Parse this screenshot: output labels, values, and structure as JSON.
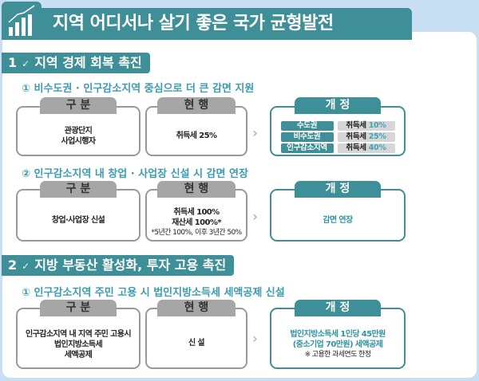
{
  "title": "지역 어디서나 살기 좋은 국가 균형발전",
  "icon": "bar-chart-growth-icon",
  "colors": {
    "teal": "#3e8f97",
    "background": "#c8def3",
    "subtitle": "#3b9bb0"
  },
  "headers": {
    "category": "구 분",
    "current": "현 행",
    "revised": "개 정"
  },
  "sections": [
    {
      "num": "1",
      "label": "지역 경제 회복 촉진",
      "items": [
        {
          "subtitle": "① 비수도권 · 인구감소지역 중심으로 더 큰 감면 지원",
          "category": [
            "관광단지",
            "사업시행자"
          ],
          "current": [
            "취득세 25%"
          ],
          "revised_rows": [
            {
              "region": "수도권",
              "tax": "취득세",
              "rate": "10%"
            },
            {
              "region": "비수도권",
              "tax": "취득세",
              "rate": "25%"
            },
            {
              "region": "인구감소지역",
              "tax": "취득세",
              "rate": "40%"
            }
          ]
        },
        {
          "subtitle": "② 인구감소지역 내 창업 · 사업장 신설 시 감면 연장",
          "category": [
            "창업·사업장 신설"
          ],
          "current": [
            "취득세 100%",
            "재산세 100%*"
          ],
          "current_note": "*5년간 100%, 이후 3년간 50%",
          "revised": [
            "감면 연장"
          ]
        }
      ]
    },
    {
      "num": "2",
      "label": "지방 부동산 활성화, 투자 고용 촉진",
      "items": [
        {
          "subtitle": "① 인구감소지역 주민 고용 시 법인지방소득세 세액공제 신설",
          "category": [
            "인구감소지역 내 지역 주민 고용시",
            "법인지방소득세",
            "세액공제"
          ],
          "current": [
            "신 설"
          ],
          "revised": [
            "법인지방소득세 1인당 45만원",
            "(중소기업 70만원) 세액공제"
          ],
          "revised_note": "※ 고용한 과세연도 한정"
        }
      ]
    }
  ]
}
